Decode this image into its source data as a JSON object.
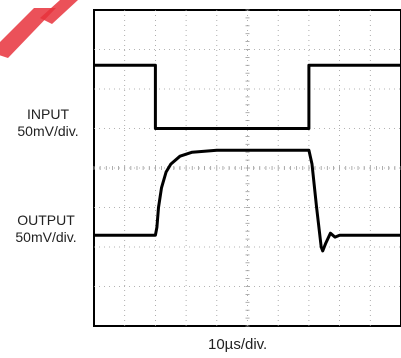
{
  "chart_data": {
    "type": "line",
    "title": "",
    "xlabel": "10µs/div.",
    "x_unit_per_division": "10µs",
    "divisions": {
      "x": 10,
      "y": 8
    },
    "grid": true,
    "grid_style": "dotted",
    "series": [
      {
        "name": "INPUT",
        "scale": "50mV/div.",
        "color": "#000000",
        "x": [
          0,
          2.0,
          2.0,
          7.0,
          7.0,
          10
        ],
        "y": [
          6.6,
          6.6,
          5.0,
          5.0,
          6.6,
          6.6
        ]
      },
      {
        "name": "OUTPUT",
        "scale": "50mV/div.",
        "color": "#000000",
        "x": [
          0,
          2.0,
          2.05,
          2.1,
          2.2,
          2.35,
          2.5,
          2.8,
          3.2,
          4.0,
          5.0,
          7.0,
          7.1,
          7.25,
          7.4,
          7.45,
          7.55,
          7.7,
          7.85,
          8.0,
          10
        ],
        "y": [
          2.3,
          2.3,
          2.5,
          3.0,
          3.5,
          3.9,
          4.1,
          4.3,
          4.4,
          4.45,
          4.45,
          4.45,
          4.1,
          3.0,
          2.0,
          1.9,
          2.1,
          2.35,
          2.25,
          2.3,
          2.3
        ]
      }
    ]
  },
  "labels": {
    "input_name": "INPUT",
    "input_scale": "50mV/div.",
    "output_name": "OUTPUT",
    "output_scale": "50mV/div."
  },
  "colors": {
    "watermark": "#e8323c",
    "trace": "#000000",
    "grid": "#9a9a9a"
  }
}
